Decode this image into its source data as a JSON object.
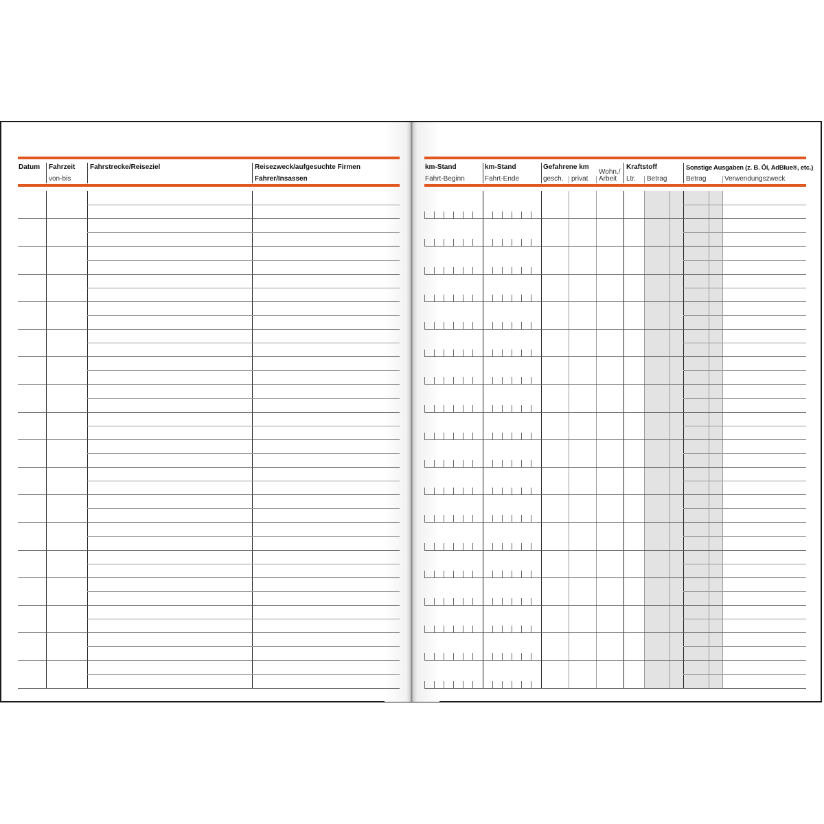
{
  "left_page": {
    "headers": {
      "datum": "Datum",
      "fahrzeit": "Fahrzeit",
      "fahrzeit_sub": "von-bis",
      "fahrstrecke": "Fahrstrecke/Reiseziel",
      "reisezweck": "Reisezweck/aufgesuchte Firmen",
      "fahrer": "Fahrer/Insassen"
    }
  },
  "right_page": {
    "headers": {
      "km_beginn": "km-Stand",
      "km_beginn_sub": "Fahrt-Beginn",
      "km_ende": "km-Stand",
      "km_ende_sub": "Fahrt-Ende",
      "gefahrene": "Gefahrene km",
      "gesch": "gesch.",
      "privat": "privat",
      "wohn": "Wohn./",
      "arbeit": "Arbeit",
      "kraftstoff": "Kraftstoff",
      "ltr": "Ltr.",
      "betrag": "Betrag",
      "sonstige": "Sonstige Ausgaben (z. B. Öl, AdBlue®, etc.)",
      "sonstige_betrag": "Betrag",
      "verwendungszweck": "Verwendungszweck"
    }
  },
  "colors": {
    "accent": "#e0571f",
    "shade": "#e3e3e3"
  }
}
